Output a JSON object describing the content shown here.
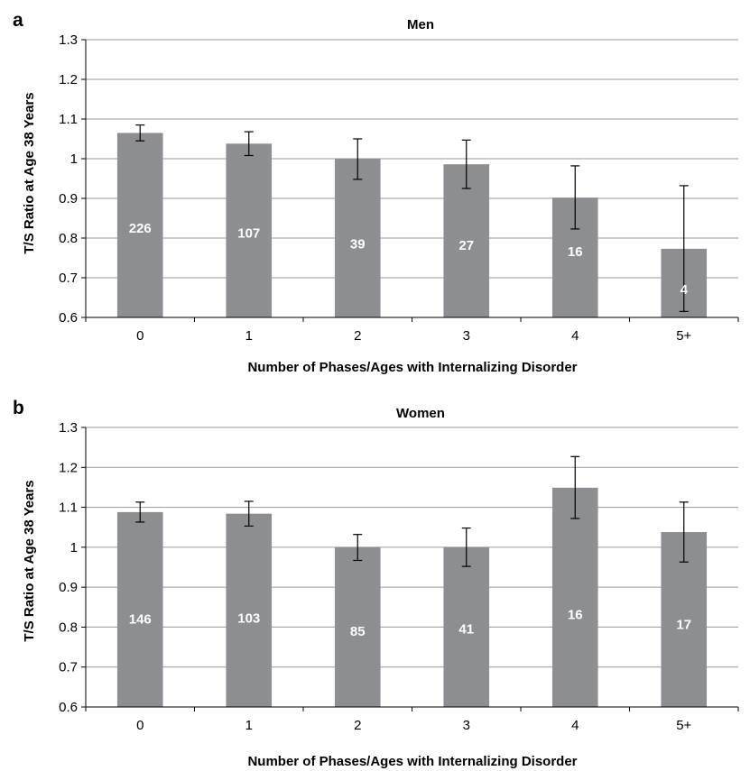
{
  "colors": {
    "bar": "#8c8e91",
    "grid": "#9a9a9a",
    "axis": "#000000",
    "count_text": "#ffffff"
  },
  "chart_data": [
    {
      "type": "bar",
      "panel": "a",
      "title": "Men",
      "xlabel": "Number of Phases/Ages with Internalizing Disorder",
      "ylabel": "T/S Ratio at Age 38 Years",
      "ylim": [
        0.6,
        1.3
      ],
      "yticks": [
        "0.6",
        "0.7",
        "0.8",
        "0.9",
        "1",
        "1.1",
        "1.2",
        "1.3"
      ],
      "grid": true,
      "categories": [
        "0",
        "1",
        "2",
        "3",
        "4",
        "5+"
      ],
      "values": [
        1.065,
        1.038,
        1.0,
        0.986,
        0.902,
        0.773
      ],
      "error_low": [
        1.045,
        1.008,
        0.948,
        0.925,
        0.823,
        0.615
      ],
      "error_high": [
        1.085,
        1.068,
        1.05,
        1.047,
        0.982,
        0.932
      ],
      "counts": [
        "226",
        "107",
        "39",
        "27",
        "16",
        "4"
      ],
      "count_label_values": [
        0.825,
        0.813,
        0.785,
        0.782,
        0.766,
        0.67
      ]
    },
    {
      "type": "bar",
      "panel": "b",
      "title": "Women",
      "xlabel": "Number of Phases/Ages with Internalizing  Disorder",
      "ylabel": "T/S Ratio at Age 38 Years",
      "ylim": [
        0.6,
        1.3
      ],
      "yticks": [
        "0.6",
        "0.7",
        "0.8",
        "0.9",
        "1",
        "1.1",
        "1.2",
        "1.3"
      ],
      "grid": true,
      "categories": [
        "0",
        "1",
        "2",
        "3",
        "4",
        "5+"
      ],
      "values": [
        1.088,
        1.084,
        1.0,
        1.0,
        1.149,
        1.038
      ],
      "error_low": [
        1.063,
        1.053,
        0.967,
        0.952,
        1.072,
        0.963
      ],
      "error_high": [
        1.113,
        1.115,
        1.032,
        1.048,
        1.227,
        1.113
      ],
      "counts": [
        "146",
        "103",
        "85",
        "41",
        "16",
        "17"
      ],
      "count_label_values": [
        0.82,
        0.822,
        0.79,
        0.795,
        0.832,
        0.807
      ]
    }
  ]
}
